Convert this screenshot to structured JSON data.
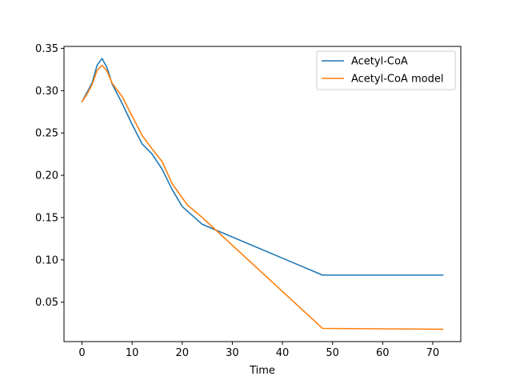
{
  "chart_data": {
    "type": "line",
    "title": "",
    "xlabel": "Time",
    "ylabel": "",
    "xlim": [
      -3.6,
      75.6
    ],
    "ylim": [
      0.0034,
      0.3523
    ],
    "xticks": [
      0,
      10,
      20,
      30,
      40,
      50,
      60,
      70
    ],
    "xtick_labels": [
      "0",
      "10",
      "20",
      "30",
      "40",
      "50",
      "60",
      "70"
    ],
    "yticks": [
      0.05,
      0.1,
      0.15,
      0.2,
      0.25,
      0.3,
      0.35
    ],
    "ytick_labels": [
      "0.05",
      "0.10",
      "0.15",
      "0.20",
      "0.25",
      "0.30",
      "0.35"
    ],
    "grid": false,
    "legend_position": "top-right",
    "series": [
      {
        "name": "Acetyl-CoA",
        "color": "#1f77b4",
        "x": [
          0,
          2,
          3,
          4,
          5,
          6,
          8,
          10,
          12,
          14,
          16,
          18,
          20,
          24,
          48,
          72
        ],
        "y": [
          0.287,
          0.309,
          0.33,
          0.338,
          0.327,
          0.308,
          0.285,
          0.26,
          0.237,
          0.225,
          0.207,
          0.183,
          0.163,
          0.142,
          0.082,
          0.082
        ]
      },
      {
        "name": "Acetyl-CoA model",
        "color": "#ff7f0e",
        "x": [
          0,
          1,
          2,
          3,
          4,
          5,
          6,
          8,
          10,
          12,
          14,
          16,
          18,
          21,
          24,
          48,
          72
        ],
        "y": [
          0.287,
          0.296,
          0.307,
          0.324,
          0.33,
          0.323,
          0.309,
          0.293,
          0.27,
          0.247,
          0.231,
          0.216,
          0.19,
          0.165,
          0.15,
          0.019,
          0.018
        ]
      }
    ]
  }
}
